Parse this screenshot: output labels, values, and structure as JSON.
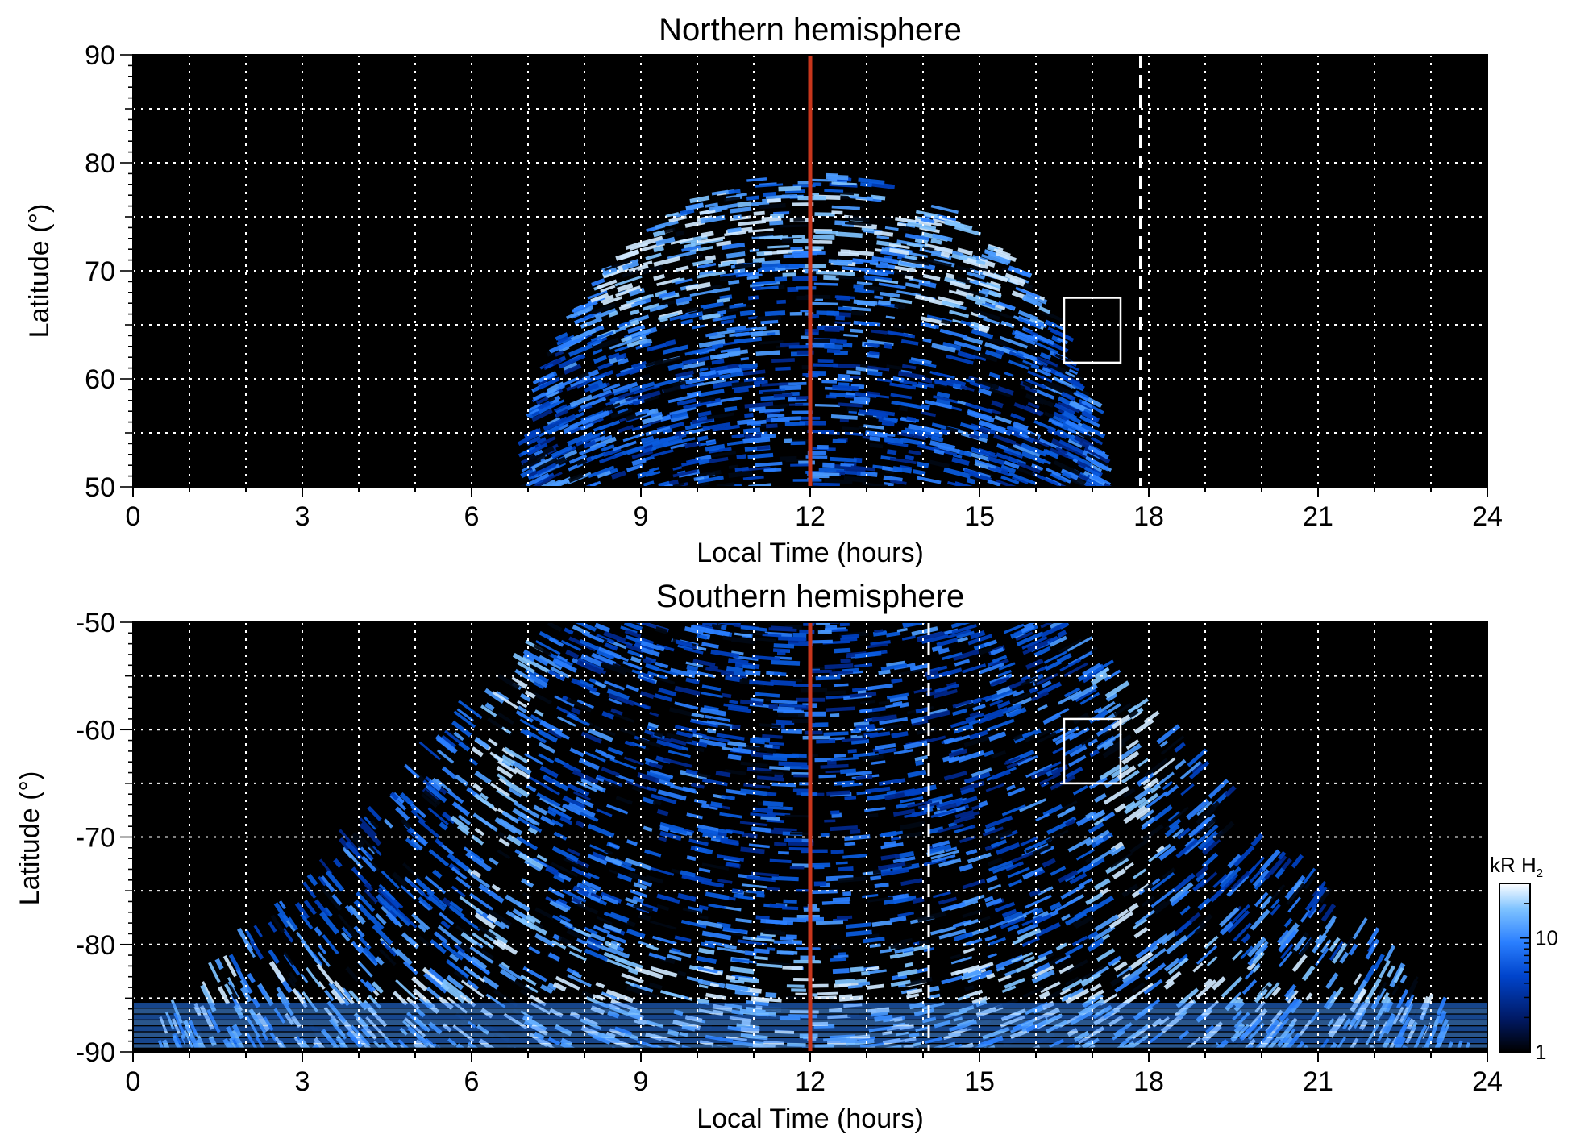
{
  "chart_data": [
    {
      "type": "heatmap",
      "title": "Northern hemisphere",
      "xlabel": "Local Time (hours)",
      "ylabel": "Latitude (°)",
      "xlim": [
        0,
        24
      ],
      "ylim": [
        50,
        90
      ],
      "xticks": [
        0,
        3,
        6,
        9,
        12,
        15,
        18,
        21,
        24
      ],
      "xtick_labels": [
        "0",
        "3",
        "6",
        "9",
        "12",
        "15",
        "18",
        "21",
        "24"
      ],
      "yticks": [
        50,
        60,
        70,
        80,
        90
      ],
      "ytick_labels": [
        "50",
        "60",
        "70",
        "80",
        "90"
      ],
      "grid": true,
      "coverage": {
        "lt_min": 7.0,
        "lt_max": 17.2,
        "lat_min": 50,
        "lat_max_at_noon": 79
      },
      "emission_bands": [
        {
          "lt_center": 9.0,
          "lat_center": 70,
          "width_lt": 1.8,
          "width_lat": 6
        },
        {
          "lt_center": 12.0,
          "lat_center": 74,
          "width_lt": 4.0,
          "width_lat": 4
        },
        {
          "lt_center": 15.0,
          "lat_center": 70,
          "width_lt": 1.8,
          "width_lat": 6
        }
      ],
      "noon_line": {
        "x": 12,
        "color": "#c8361c"
      },
      "dashed_line": {
        "x": 17.85
      },
      "box": {
        "x0": 16.5,
        "x1": 17.5,
        "y0": 61.5,
        "y1": 67.5
      }
    },
    {
      "type": "heatmap",
      "title": "Southern hemisphere",
      "xlabel": "Local Time (hours)",
      "ylabel": "Latitude (°)",
      "xlim": [
        0,
        24
      ],
      "ylim": [
        -90,
        -50
      ],
      "xticks": [
        0,
        3,
        6,
        9,
        12,
        15,
        18,
        21,
        24
      ],
      "xtick_labels": [
        "0",
        "3",
        "6",
        "9",
        "12",
        "15",
        "18",
        "21",
        "24"
      ],
      "yticks": [
        -90,
        -80,
        -70,
        -60,
        -50
      ],
      "ytick_labels": [
        "-90",
        "-80",
        "-70",
        "-60",
        "-50"
      ],
      "grid": true,
      "coverage": {
        "lt_min": 0,
        "lt_max": 24,
        "lat_top": -50,
        "lat_bottom": -90
      },
      "emission_bands": [
        {
          "lt_center": 6.5,
          "lat_center": -65,
          "width_lt": 0.7,
          "width_lat": 30
        },
        {
          "lt_center": 17.7,
          "lat_center": -65,
          "width_lt": 0.7,
          "width_lat": 30
        },
        {
          "lt_center": 12.0,
          "lat_center": -86,
          "width_lt": 20,
          "width_lat": 6
        }
      ],
      "noon_line": {
        "x": 12,
        "color": "#c8361c"
      },
      "dashed_line": {
        "x": 14.1
      },
      "box": {
        "x0": 16.5,
        "x1": 17.5,
        "y0": -65,
        "y1": -59
      }
    }
  ],
  "colorbar": {
    "label_main": "kR H",
    "label_sub": "2",
    "scale": "log",
    "range": [
      1,
      30
    ],
    "ticks": [
      1,
      10
    ],
    "tick_labels": [
      "1",
      "10"
    ],
    "colors": [
      "#000000",
      "#001a66",
      "#0044cc",
      "#2a7fff",
      "#7fc3ff",
      "#ffffff"
    ]
  }
}
